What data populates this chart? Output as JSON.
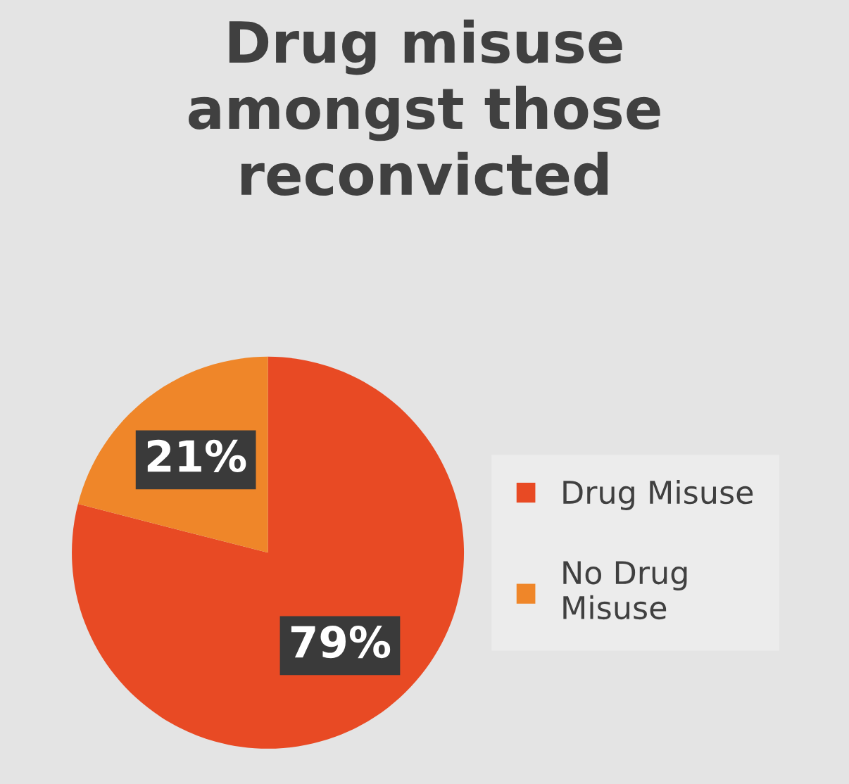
{
  "chart_data": {
    "type": "pie",
    "title": "Drug misuse\namongst those\nreconvicted",
    "categories": [
      "Drug Misuse",
      "No Drug\nMisuse"
    ],
    "values": [
      79,
      21
    ],
    "colors": [
      "#e84a24",
      "#ef8629"
    ],
    "value_labels": [
      "79%",
      "21%"
    ],
    "legend": "right"
  }
}
